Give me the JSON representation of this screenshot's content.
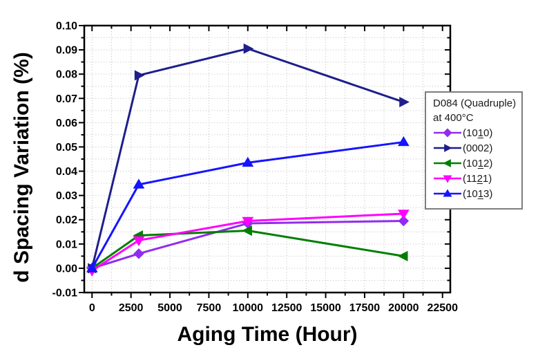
{
  "chart_data": {
    "type": "line",
    "title": "",
    "xlabel": "Aging Time (Hour)",
    "ylabel": "d Spacing Variation (%)",
    "xlim": [
      -500,
      23000
    ],
    "ylim": [
      -0.01,
      0.1
    ],
    "xticks": [
      0,
      2500,
      5000,
      7500,
      10000,
      12500,
      15000,
      17500,
      20000,
      22500
    ],
    "x_minor_step": 1250,
    "ytick_step": 0.01,
    "ytick_decimals": 2,
    "y_minor_step": 0.005,
    "grid": {
      "style": "dotted",
      "color": "#c6c6c6",
      "x_step": 1250,
      "y_step": 0.005
    },
    "axis_color": "#000000",
    "x": [
      0,
      3000,
      10000,
      20000
    ],
    "series": [
      {
        "label_pre": "(10",
        "label_bar": "1",
        "label_post": "0)",
        "marker": "diamond",
        "color": "#912CEE",
        "values": [
          0.0,
          0.006,
          0.0185,
          0.0195
        ]
      },
      {
        "label_pre": "(0002)",
        "label_bar": "",
        "label_post": "",
        "marker": "triangle-right",
        "color": "#1E1E8C",
        "values": [
          0.0,
          0.0795,
          0.0905,
          0.0685
        ]
      },
      {
        "label_pre": "(10",
        "label_bar": "1",
        "label_post": "2)",
        "marker": "triangle-left",
        "color": "#007F00",
        "values": [
          0.0,
          0.0135,
          0.0155,
          0.005
        ]
      },
      {
        "label_pre": "(11",
        "label_bar": "2",
        "label_post": "1)",
        "marker": "triangle-down",
        "color": "#FF00FF",
        "values": [
          -0.001,
          0.0115,
          0.0195,
          0.0225
        ]
      },
      {
        "label_pre": "(10",
        "label_bar": "1",
        "label_post": "3)",
        "marker": "triangle-up",
        "color": "#1414FF",
        "values": [
          0.0,
          0.0345,
          0.0435,
          0.052
        ]
      }
    ],
    "legend": {
      "title_line1": "D084 (Quadruple)",
      "title_line2": "at 400°C",
      "position": "right, overlapping plot edge"
    }
  }
}
